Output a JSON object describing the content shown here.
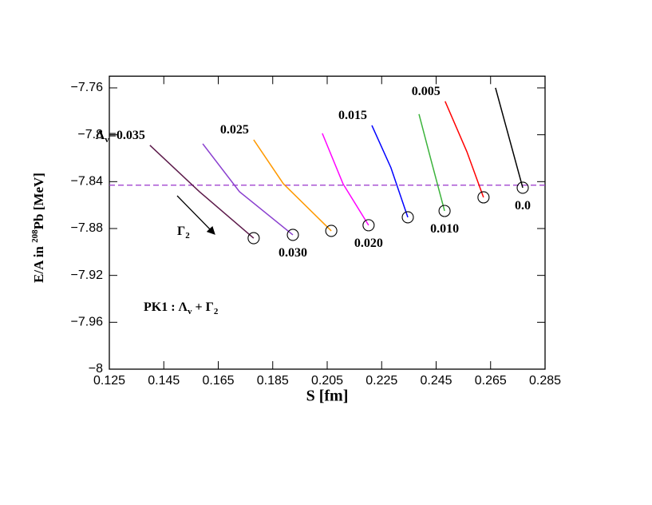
{
  "chart_data": {
    "type": "line",
    "xlabel": "S [fm]",
    "ylabel": {
      "before": "E/A in ",
      "sup": "208",
      "after": "Pb [MeV]"
    },
    "xlim": [
      0.125,
      0.285
    ],
    "ylim": [
      -8,
      -7.75
    ],
    "xticks": [
      0.125,
      0.145,
      0.165,
      0.185,
      0.205,
      0.225,
      0.245,
      0.265,
      0.285
    ],
    "yticks": [
      {
        "value": -7.76,
        "label": "−7.76"
      },
      {
        "value": -7.8,
        "label": "−7.8"
      },
      {
        "value": -7.84,
        "label": "−7.84"
      },
      {
        "value": -7.88,
        "label": "−7.88"
      },
      {
        "value": -7.92,
        "label": "−7.92"
      },
      {
        "value": -7.96,
        "label": "−7.96"
      },
      {
        "value": -8,
        "label": "−8"
      }
    ],
    "reference_line": {
      "value": -7.843,
      "color": "#9933cc"
    },
    "lambda_prefix": {
      "symbol": "Λ",
      "sub": "v",
      "eq": "="
    },
    "series": [
      {
        "name": "0.0",
        "color": "#000000",
        "x": [
          0.2668,
          0.2724,
          0.2768
        ],
        "values": [
          -7.76,
          -7.8077,
          -7.8452
        ]
      },
      {
        "name": "0.005",
        "color": "#ff0000",
        "x": [
          0.2483,
          0.2563,
          0.2624
        ],
        "values": [
          -7.7715,
          -7.8145,
          -7.8534
        ]
      },
      {
        "name": "0.010",
        "color": "#3cb33c",
        "x": [
          0.2387,
          0.2431,
          0.2481
        ],
        "values": [
          -7.7824,
          -7.8213,
          -7.865
        ]
      },
      {
        "name": "0.015",
        "color": "#0000ff",
        "x": [
          0.2214,
          0.2284,
          0.2346
        ],
        "values": [
          -7.792,
          -7.8281,
          -7.8704
        ]
      },
      {
        "name": "0.020",
        "color": "#ff00ff",
        "x": [
          0.2032,
          0.2108,
          0.2202
        ],
        "values": [
          -7.7988,
          -7.8418,
          -7.8772
        ]
      },
      {
        "name": "0.025",
        "color": "#ff9900",
        "x": [
          0.178,
          0.1889,
          0.2065
        ],
        "values": [
          -7.8043,
          -7.8418,
          -7.882
        ]
      },
      {
        "name": "0.030",
        "color": "#8a3fcf",
        "x": [
          0.1593,
          0.1728,
          0.1924
        ],
        "values": [
          -7.8077,
          -7.8486,
          -7.8854
        ]
      },
      {
        "name": "0.035",
        "color": "#5c1a4a",
        "x": [
          0.1399,
          0.1581,
          0.178
        ],
        "values": [
          -7.809,
          -7.8486,
          -7.8882
        ]
      }
    ],
    "gamma_label": {
      "symbol": "Γ",
      "sub": "2"
    },
    "model_label": {
      "name": "PK1 : ",
      "l": "Λ",
      "lsub": "v",
      "plus": " + ",
      "g": "Γ",
      "gsub": "2"
    }
  }
}
